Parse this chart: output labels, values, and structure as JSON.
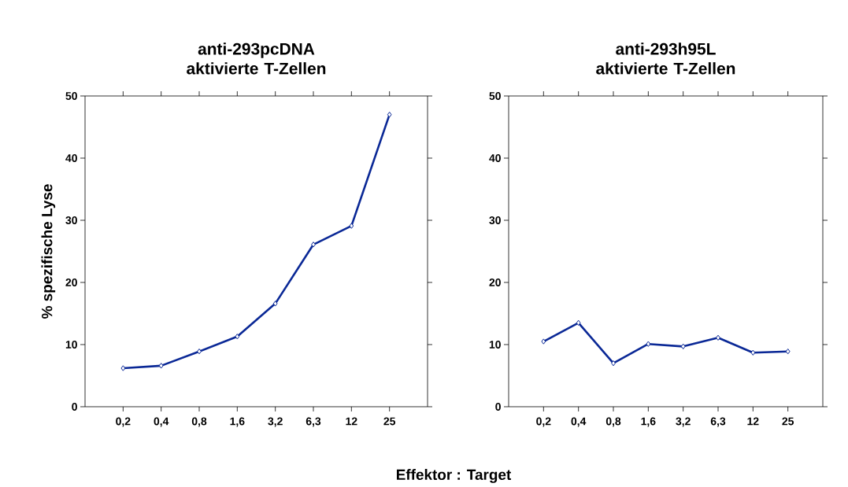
{
  "chart_data": [
    {
      "type": "line",
      "title": "anti-293pcDNA aktivierte T-Zellen",
      "xlabel": "Effektor : Target",
      "ylabel": "% spezifische Lyse",
      "categories": [
        "0,2",
        "0,4",
        "0,8",
        "1,6",
        "3,2",
        "6,3",
        "12",
        "25"
      ],
      "values": [
        6.2,
        6.6,
        8.9,
        11.3,
        16.6,
        26.1,
        29.1,
        47.0
      ],
      "color": "#0a2896",
      "marker": "diamond",
      "line_style": "solid",
      "ylim": [
        0,
        50
      ],
      "yticks": [
        0,
        10,
        20,
        30,
        40,
        50
      ]
    },
    {
      "type": "line",
      "title": "anti-293h95L aktivierte T-Zellen",
      "categories": [
        "0,2",
        "0,4",
        "0,8",
        "1,6",
        "3,2",
        "6,3",
        "12",
        "25"
      ],
      "values": [
        10.5,
        13.5,
        7.0,
        10.1,
        9.7,
        11.1,
        8.7,
        8.9
      ],
      "color": "#0a2896",
      "marker": "diamond",
      "line_style": "solid",
      "ylim": [
        0,
        50
      ],
      "yticks": [
        0,
        10,
        20,
        30,
        40,
        50
      ]
    }
  ]
}
